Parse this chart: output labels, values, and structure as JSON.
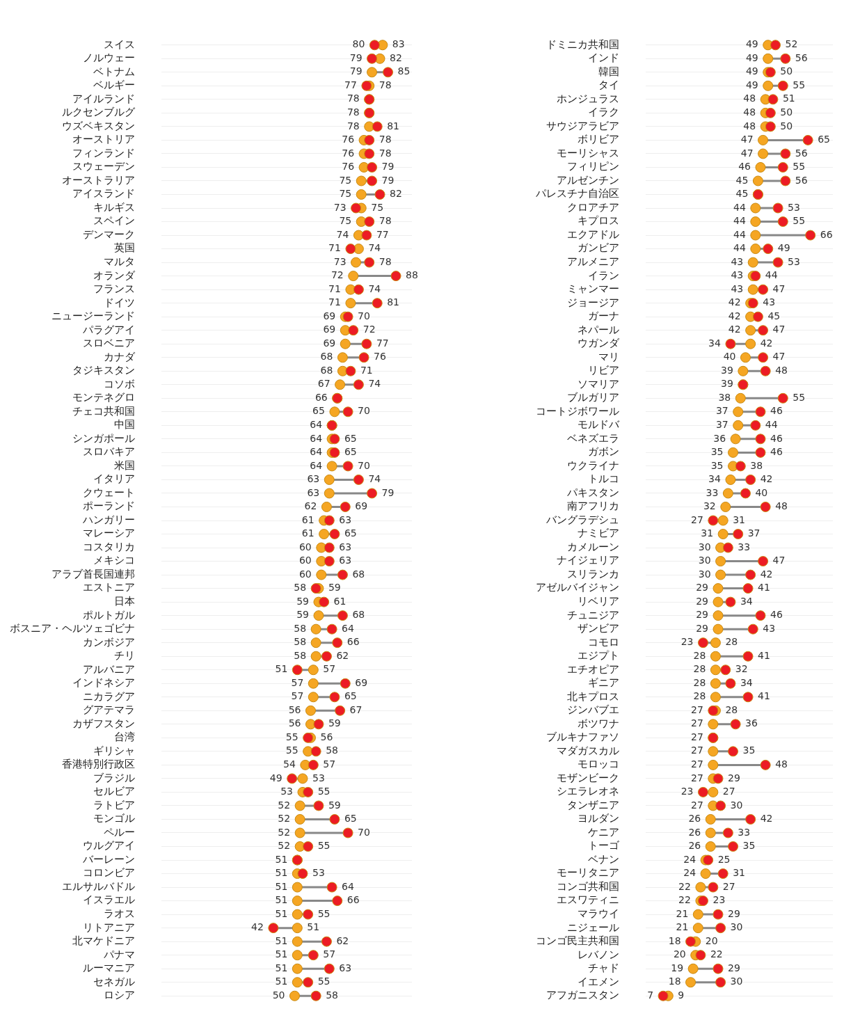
{
  "chart_data": [
    {
      "type": "scatter",
      "orientation": "horizontal",
      "marker": "circle",
      "grid": "y",
      "tick_labels": "y",
      "xlim": [
        0,
        94
      ],
      "categories": [
        "スイス",
        "ノルウェー",
        "ベトナム",
        "ベルギー",
        "アイルランド",
        "ルクセンブルグ",
        "ウズベキスタン",
        "オーストリア",
        "フィンランド",
        "スウェーデン",
        "オーストラリア",
        "アイスランド",
        "キルギス",
        "スペイン",
        "デンマーク",
        "英国",
        "マルタ",
        "オランダ",
        "フランス",
        "ドイツ",
        "ニュージーランド",
        "パラグアイ",
        "スロベニア",
        "カナダ",
        "タジキスタン",
        "コソボ",
        "モンテネグロ",
        "チェコ共和国",
        "中国",
        "シンガポール",
        "スロバキア",
        "米国",
        "イタリア",
        "クウェート",
        "ポーランド",
        "ハンガリー",
        "マレーシア",
        "コスタリカ",
        "メキシコ",
        "アラブ首長国連邦",
        "エストニア",
        "日本",
        "ポルトガル",
        "ボスニア・ヘルツェゴビナ",
        "カンボジア",
        "チリ",
        "アルバニア",
        "インドネシア",
        "ニカラグア",
        "グアテマラ",
        "カザフスタン",
        "台湾",
        "ギリシャ",
        "香港特別行政区",
        "ブラジル",
        "セルビア",
        "ラトビア",
        "モンゴル",
        "ペルー",
        "ウルグアイ",
        "バーレーン",
        "コロンビア",
        "エルサルバドル",
        "イスラエル",
        "ラオス",
        "リトアニア",
        "北マケドニア",
        "パナマ",
        "ルーマニア",
        "セネガル",
        "ロシア"
      ],
      "series": [
        {
          "color": "#f5a623",
          "values": [
            83,
            82,
            79,
            78,
            78,
            78,
            78,
            76,
            76,
            76,
            75,
            75,
            75,
            75,
            74,
            74,
            73,
            72,
            71,
            71,
            69,
            69,
            69,
            68,
            68,
            67,
            66,
            65,
            64,
            64,
            64,
            64,
            63,
            63,
            62,
            61,
            61,
            60,
            60,
            60,
            59,
            59,
            59,
            58,
            58,
            58,
            57,
            57,
            57,
            56,
            56,
            56,
            55,
            54,
            53,
            53,
            52,
            52,
            52,
            52,
            51,
            51,
            51,
            51,
            51,
            51,
            51,
            51,
            51,
            51,
            50
          ],
          "value_labels": [
            "83",
            "82",
            "79",
            "78",
            "78",
            "78",
            "78",
            "76",
            "76",
            "76",
            "75",
            "75",
            "75",
            "75",
            "74",
            "74",
            "73",
            "72",
            "71",
            "71",
            "69",
            "69",
            "69",
            "68",
            "68",
            "67",
            "66",
            "65",
            "64",
            "64",
            "64",
            "64",
            "63",
            "63",
            "62",
            "61",
            "61",
            "60",
            "60",
            "60",
            "59",
            "59",
            "59",
            "58",
            "58",
            "58",
            "57",
            "57",
            "57",
            "56",
            "56",
            "56",
            "55",
            "54",
            "53",
            "53",
            "52",
            "52",
            "52",
            "52",
            "51",
            "51",
            "51",
            "51",
            "51",
            "51",
            "51",
            "51",
            "51",
            "51",
            "50"
          ]
        },
        {
          "color": "#ec1c24",
          "values": [
            80,
            79,
            85,
            77,
            78,
            78,
            81,
            78,
            78,
            79,
            79,
            82,
            73,
            78,
            77,
            71,
            78,
            88,
            74,
            81,
            70,
            72,
            77,
            76,
            71,
            74,
            66,
            70,
            64,
            65,
            65,
            70,
            74,
            79,
            69,
            63,
            65,
            63,
            63,
            68,
            58,
            61,
            68,
            64,
            66,
            62,
            51,
            69,
            65,
            67,
            59,
            55,
            58,
            57,
            49,
            55,
            59,
            65,
            70,
            55,
            51,
            53,
            64,
            66,
            55,
            42,
            62,
            57,
            63,
            55,
            58
          ],
          "value_labels": [
            "80",
            "79",
            "85",
            "77",
            null,
            null,
            "81",
            "78",
            "78",
            "79",
            "79",
            "82",
            "73",
            "78",
            "77",
            "71",
            "78",
            "88",
            "74",
            "81",
            "70",
            "72",
            "77",
            "76",
            "71",
            "74",
            null,
            "70",
            null,
            "65",
            "65",
            "70",
            "74",
            "79",
            "69",
            "63",
            "65",
            "63",
            "63",
            "68",
            "58",
            "61",
            "68",
            "64",
            "66",
            "62",
            "51",
            "69",
            "65",
            "67",
            "59",
            "55",
            "58",
            "57",
            "49",
            "55",
            "59",
            "65",
            "70",
            "55",
            null,
            "53",
            "64",
            "66",
            "55",
            "42",
            "62",
            "57",
            "63",
            "55",
            "58"
          ]
        }
      ]
    },
    {
      "type": "scatter",
      "orientation": "horizontal",
      "marker": "circle",
      "grid": "y",
      "tick_labels": "y",
      "xlim": [
        0,
        75
      ],
      "categories": [
        "ドミニカ共和国",
        "インド",
        "韓国",
        "タイ",
        "ホンジュラス",
        "イラク",
        "サウジアラビア",
        "ボリビア",
        "モーリシャス",
        "フィリピン",
        "アルゼンチン",
        "パレスチナ自治区",
        "クロアチア",
        "キプロス",
        "エクアドル",
        "ガンビア",
        "アルメニア",
        "イラン",
        "ミャンマー",
        "ジョージア",
        "ガーナ",
        "ネパール",
        "ウガンダ",
        "マリ",
        "リビア",
        "ソマリア",
        "ブルガリア",
        "コートジボワール",
        "モルドバ",
        "ベネズエラ",
        "ガボン",
        "ウクライナ",
        "トルコ",
        "パキスタン",
        "南アフリカ",
        "バングラデシュ",
        "ナミビア",
        "カメルーン",
        "ナイジェリア",
        "スリランカ",
        "アゼルバイジャン",
        "リベリア",
        "チュニジア",
        "ザンビア",
        "コモロ",
        "エジプト",
        "エチオピア",
        "ギニア",
        "北キプロス",
        "ジンバブエ",
        "ボツワナ",
        "ブルキナファソ",
        "マダガスカル",
        "モロッコ",
        "モザンビーク",
        "シエラレオネ",
        "タンザニア",
        "ヨルダン",
        "ケニア",
        "トーゴ",
        "ベナン",
        "モーリタニア",
        "コンゴ共和国",
        "エスワティニ",
        "マラウイ",
        "ニジェール",
        "コンゴ民主共和国",
        "レバノン",
        "チャド",
        "イエメン",
        "アフガニスタン"
      ],
      "series": [
        {
          "color": "#f5a623",
          "values": [
            49,
            49,
            49,
            49,
            48,
            48,
            48,
            47,
            47,
            46,
            45,
            45,
            44,
            44,
            44,
            44,
            43,
            43,
            43,
            42,
            42,
            42,
            42,
            40,
            39,
            39,
            38,
            37,
            37,
            36,
            35,
            35,
            34,
            33,
            32,
            31,
            31,
            30,
            30,
            30,
            29,
            29,
            29,
            29,
            28,
            28,
            28,
            28,
            28,
            28,
            27,
            27,
            27,
            27,
            27,
            27,
            27,
            26,
            26,
            26,
            24,
            24,
            22,
            22,
            21,
            21,
            20,
            20,
            19,
            18,
            9
          ],
          "value_labels": [
            "49",
            "49",
            "49",
            "49",
            "48",
            "48",
            "48",
            "47",
            "47",
            "46",
            "45",
            "45",
            "44",
            "44",
            "44",
            "44",
            "43",
            "43",
            "43",
            "42",
            "42",
            "42",
            "42",
            "40",
            "39",
            "39",
            "38",
            "37",
            "37",
            "36",
            "35",
            "35",
            "34",
            "33",
            "32",
            "31",
            "31",
            "30",
            "30",
            "30",
            "29",
            "29",
            "29",
            "29",
            "28",
            "28",
            "28",
            "28",
            "28",
            "28",
            "27",
            "27",
            "27",
            "27",
            "27",
            "27",
            "27",
            "26",
            "26",
            "26",
            "24",
            "24",
            "22",
            "22",
            "21",
            "21",
            "20",
            "20",
            "19",
            "18",
            "9"
          ]
        },
        {
          "color": "#ec1c24",
          "values": [
            52,
            56,
            50,
            55,
            51,
            50,
            50,
            65,
            56,
            55,
            56,
            45,
            53,
            55,
            66,
            49,
            53,
            44,
            47,
            43,
            45,
            47,
            34,
            47,
            48,
            39,
            55,
            46,
            44,
            46,
            46,
            38,
            42,
            40,
            48,
            27,
            37,
            33,
            47,
            42,
            41,
            34,
            46,
            43,
            23,
            41,
            32,
            34,
            41,
            27,
            36,
            27,
            35,
            48,
            29,
            23,
            30,
            42,
            33,
            35,
            25,
            31,
            27,
            23,
            29,
            30,
            18,
            22,
            29,
            30,
            7
          ],
          "value_labels": [
            "52",
            "56",
            "50",
            "55",
            "51",
            "50",
            "50",
            "65",
            "56",
            "55",
            "56",
            null,
            "53",
            "55",
            "66",
            "49",
            "53",
            "44",
            "47",
            "43",
            "45",
            "47",
            "34",
            "47",
            "48",
            null,
            "55",
            "46",
            "44",
            "46",
            "46",
            "38",
            "42",
            "40",
            "48",
            "27",
            "37",
            "33",
            "47",
            "42",
            "41",
            "34",
            "46",
            "43",
            "23",
            "41",
            "32",
            "34",
            "41",
            "27",
            "36",
            null,
            "35",
            "48",
            "29",
            "23",
            "30",
            "42",
            "33",
            "35",
            "25",
            "31",
            "27",
            "23",
            "29",
            "30",
            "18",
            "22",
            "29",
            "30",
            "7"
          ]
        }
      ]
    }
  ]
}
